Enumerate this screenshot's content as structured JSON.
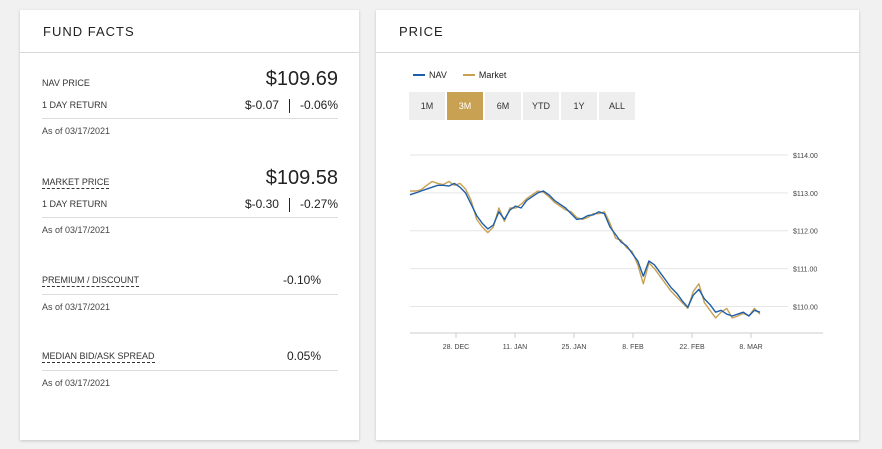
{
  "fund_facts": {
    "title": "FUND FACTS",
    "nav": {
      "label": "NAV PRICE",
      "value": "$109.69",
      "return_label": "1 DAY RETURN",
      "return_abs": "$-0.07",
      "return_pct": "-0.06%",
      "as_of": "As of 03/17/2021"
    },
    "market": {
      "label": "MARKET PRICE",
      "value": "$109.58",
      "return_label": "1 DAY RETURN",
      "return_abs": "$-0.30",
      "return_pct": "-0.27%",
      "as_of": "As of 03/17/2021"
    },
    "premium": {
      "label": "PREMIUM / DISCOUNT",
      "value": "-0.10%",
      "as_of": "As of 03/17/2021"
    },
    "spread": {
      "label": "MEDIAN BID/ASK SPREAD",
      "value": "0.05%",
      "as_of": "As of 03/17/2021"
    }
  },
  "price": {
    "title": "PRICE",
    "ranges": [
      "1M",
      "3M",
      "6M",
      "YTD",
      "1Y",
      "ALL"
    ],
    "active_range": "3M",
    "accent_color": "#c8a153"
  },
  "chart_data": {
    "type": "line",
    "x_tick_labels": [
      "28. DEC",
      "11. JAN",
      "25. JAN",
      "8. FEB",
      "22. FEB",
      "8. MAR"
    ],
    "y_tick_labels": [
      "$114.00",
      "$113.00",
      "$112.00",
      "$111.00",
      "$110.00"
    ],
    "ylim": [
      109.3,
      114.0
    ],
    "grid": true,
    "legend_position": "top-left",
    "series": [
      {
        "name": "NAV",
        "color": "#1f5ea8",
        "x": [
          0,
          1,
          2,
          3,
          4,
          5,
          6,
          7,
          8,
          9,
          10,
          11,
          12,
          13,
          14,
          15,
          16,
          17,
          18,
          19,
          20,
          21,
          22,
          23,
          24,
          25,
          26,
          27,
          28,
          29,
          30,
          31,
          32,
          33,
          34,
          35,
          36,
          37,
          38,
          39,
          40,
          41,
          42,
          43,
          44,
          45,
          46,
          47,
          48,
          49,
          50,
          51,
          52,
          53,
          54,
          55,
          56,
          57,
          58,
          59,
          60,
          61,
          62,
          63
        ],
        "values": [
          112.95,
          113.0,
          113.05,
          113.1,
          113.15,
          113.2,
          113.2,
          113.18,
          113.25,
          113.15,
          113.0,
          112.7,
          112.4,
          112.2,
          112.05,
          112.15,
          112.5,
          112.3,
          112.55,
          112.65,
          112.6,
          112.8,
          112.9,
          113.0,
          113.05,
          112.95,
          112.8,
          112.7,
          112.6,
          112.45,
          112.3,
          112.32,
          112.4,
          112.42,
          112.5,
          112.45,
          112.1,
          111.9,
          111.7,
          111.6,
          111.4,
          111.2,
          110.8,
          111.2,
          111.1,
          110.9,
          110.7,
          110.5,
          110.35,
          110.15,
          109.98,
          110.3,
          110.45,
          110.2,
          110.05,
          109.85,
          109.9,
          109.8,
          109.75,
          109.8,
          109.85,
          109.75,
          109.9,
          109.85
        ]
      },
      {
        "name": "Market",
        "color": "#c8a153",
        "x": [
          0,
          1,
          2,
          3,
          4,
          5,
          6,
          7,
          8,
          9,
          10,
          11,
          12,
          13,
          14,
          15,
          16,
          17,
          18,
          19,
          20,
          21,
          22,
          23,
          24,
          25,
          26,
          27,
          28,
          29,
          30,
          31,
          32,
          33,
          34,
          35,
          36,
          37,
          38,
          39,
          40,
          41,
          42,
          43,
          44,
          45,
          46,
          47,
          48,
          49,
          50,
          51,
          52,
          53,
          54,
          55,
          56,
          57,
          58,
          59,
          60,
          61,
          62,
          63
        ],
        "values": [
          113.05,
          113.05,
          113.08,
          113.2,
          113.3,
          113.25,
          113.22,
          113.3,
          113.2,
          113.25,
          113.1,
          112.8,
          112.3,
          112.1,
          111.95,
          112.1,
          112.6,
          112.25,
          112.6,
          112.6,
          112.7,
          112.85,
          112.95,
          113.05,
          113.02,
          112.9,
          112.75,
          112.65,
          112.55,
          112.5,
          112.35,
          112.3,
          112.35,
          112.45,
          112.45,
          112.5,
          112.2,
          111.8,
          111.75,
          111.55,
          111.45,
          111.1,
          110.6,
          111.15,
          111.0,
          110.8,
          110.6,
          110.4,
          110.25,
          110.1,
          109.95,
          110.4,
          110.6,
          110.1,
          109.9,
          109.7,
          109.85,
          109.95,
          109.7,
          109.75,
          109.82,
          109.75,
          109.95,
          109.8
        ]
      }
    ]
  }
}
